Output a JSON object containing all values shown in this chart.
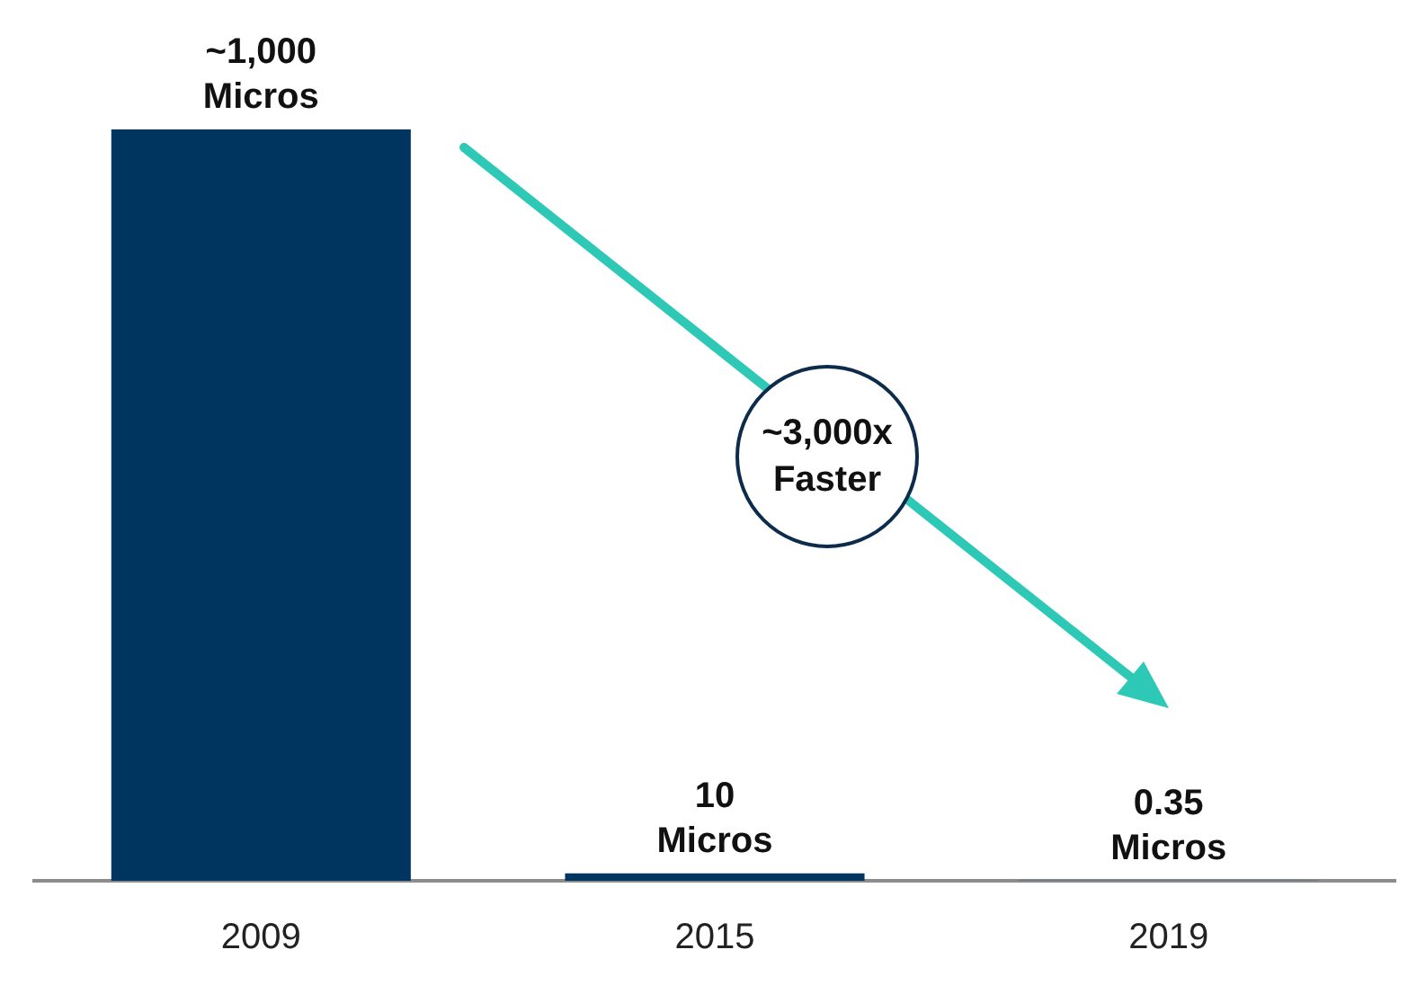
{
  "chart_data": {
    "type": "bar",
    "categories": [
      "2009",
      "2015",
      "2019"
    ],
    "values": [
      1000,
      10,
      0.35
    ],
    "value_labels": [
      "~1,000\nMicros",
      "10\nMicros",
      "0.35\nMicros"
    ],
    "color": "#003560",
    "grid": false,
    "legend": false,
    "tick_labels": "x",
    "annotations": [
      "~3,000x\nFaster"
    ]
  }
}
